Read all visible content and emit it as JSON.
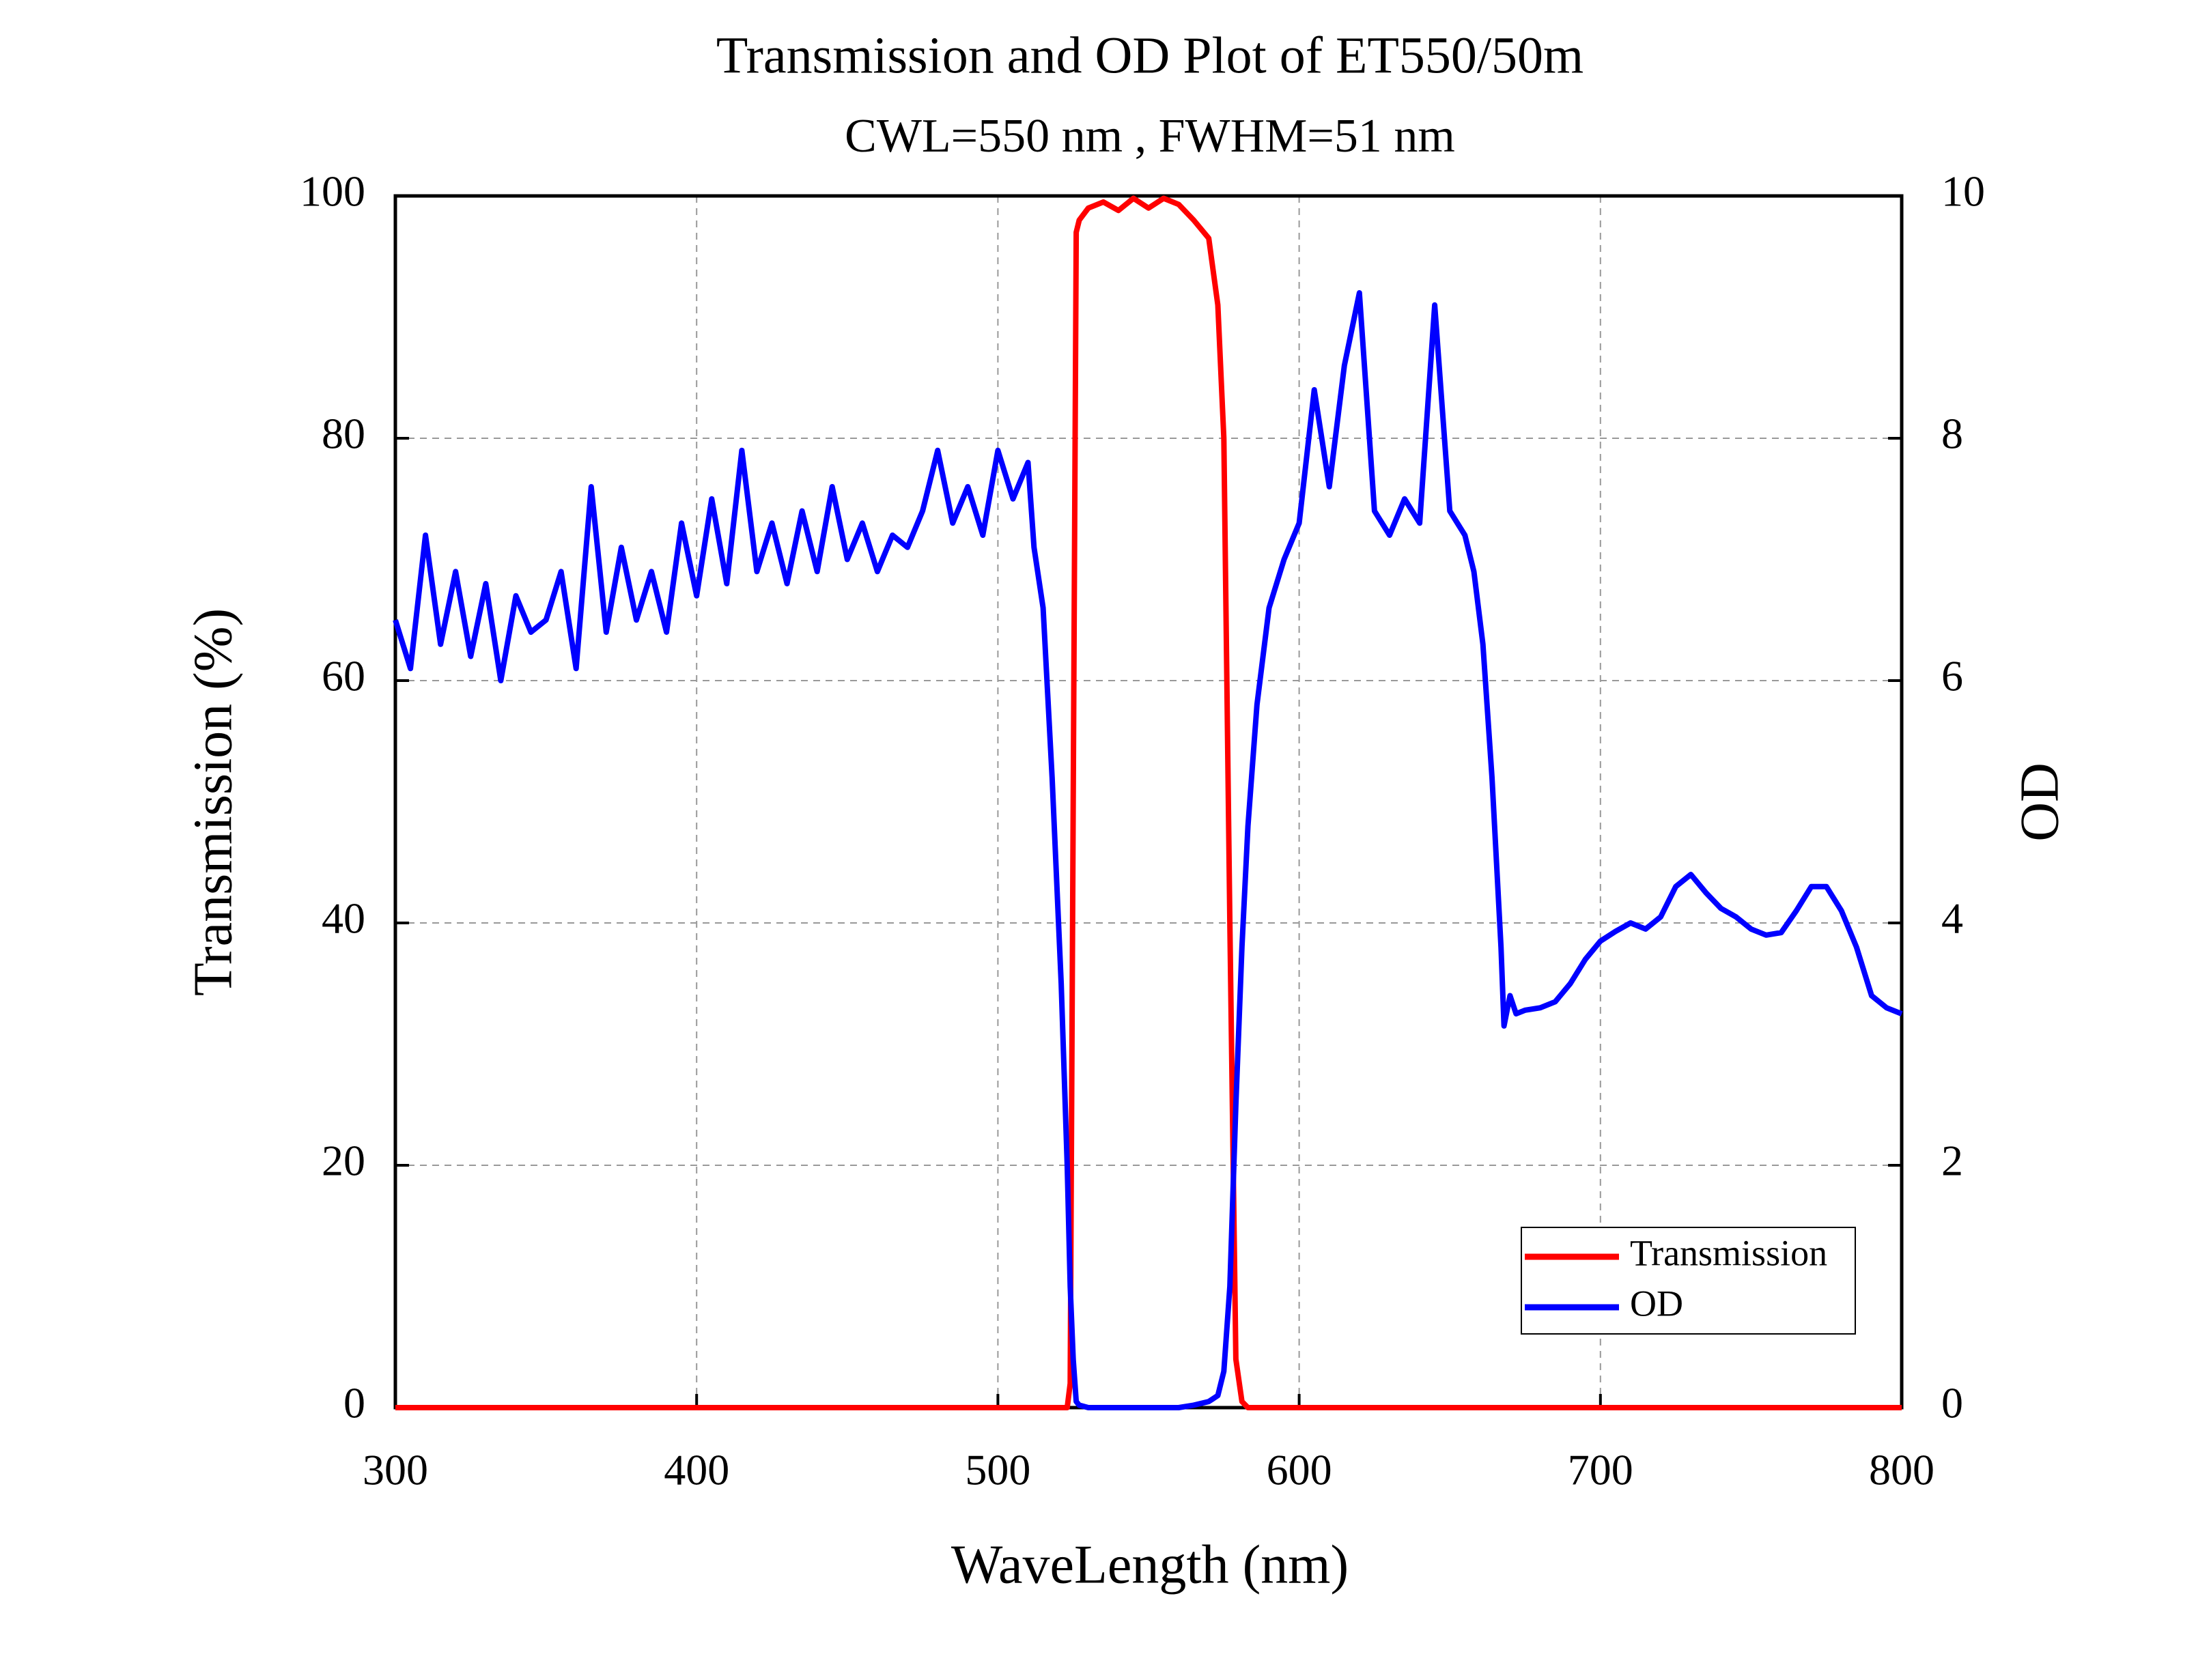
{
  "chart_data": {
    "type": "line",
    "title": "Transmission and OD Plot of ET550/50m",
    "subtitle": "CWL=550 nm , FWHM=51 nm",
    "xlabel": "WaveLength (nm)",
    "ylabel": "Transmission (%)",
    "y2label": "OD",
    "x": [
      300,
      305,
      310,
      315,
      320,
      325,
      330,
      335,
      340,
      345,
      350,
      355,
      360,
      365,
      370,
      375,
      380,
      385,
      390,
      395,
      400,
      405,
      410,
      415,
      420,
      425,
      430,
      435,
      440,
      445,
      450,
      455,
      460,
      465,
      470,
      475,
      480,
      485,
      490,
      495,
      500,
      505,
      510,
      512,
      515,
      518,
      521,
      523,
      524,
      525,
      526,
      527,
      530,
      535,
      540,
      545,
      550,
      555,
      560,
      565,
      570,
      573,
      575,
      577,
      579,
      581,
      583,
      586,
      590,
      595,
      600,
      605,
      610,
      615,
      620,
      625,
      630,
      635,
      640,
      645,
      650,
      655,
      658,
      661,
      664,
      667,
      668,
      670,
      672,
      675,
      680,
      685,
      690,
      695,
      700,
      705,
      710,
      715,
      720,
      725,
      730,
      735,
      740,
      745,
      750,
      755,
      760,
      765,
      770,
      775,
      780,
      785,
      790,
      795,
      800
    ],
    "series": [
      {
        "name": "Transmission",
        "color": "#ff0000",
        "values": [
          0,
          0,
          0,
          0,
          0,
          0,
          0,
          0,
          0,
          0,
          0,
          0,
          0,
          0,
          0,
          0,
          0,
          0,
          0,
          0,
          0,
          0,
          0,
          0,
          0,
          0,
          0,
          0,
          0,
          0,
          0,
          0,
          0,
          0,
          0,
          0,
          0,
          0,
          0,
          0,
          0,
          0,
          0,
          0,
          0,
          0,
          0,
          0,
          2,
          50,
          97,
          98,
          99,
          99.5,
          98.8,
          99.8,
          99,
          99.8,
          99.3,
          98,
          96.5,
          91,
          80,
          40,
          4,
          0.5,
          0,
          0,
          0,
          0,
          0,
          0,
          0,
          0,
          0,
          0,
          0,
          0,
          0,
          0,
          0,
          0,
          0,
          0,
          0,
          0,
          0,
          0,
          0,
          0,
          0,
          0,
          0,
          0,
          0,
          0,
          0,
          0,
          0,
          0,
          0,
          0,
          0,
          0,
          0,
          0,
          0,
          0,
          0,
          0,
          0,
          0,
          0,
          0,
          0
        ]
      },
      {
        "name": "OD",
        "color": "#0000ff",
        "axis": "y2",
        "values": [
          6.5,
          6.1,
          7.2,
          6.3,
          6.9,
          6.2,
          6.8,
          6.0,
          6.7,
          6.4,
          6.5,
          6.9,
          6.1,
          7.6,
          6.4,
          7.1,
          6.5,
          6.9,
          6.4,
          7.3,
          6.7,
          7.5,
          6.8,
          7.9,
          6.9,
          7.3,
          6.8,
          7.4,
          6.9,
          7.6,
          7.0,
          7.3,
          6.9,
          7.2,
          7.1,
          7.4,
          7.9,
          7.3,
          7.6,
          7.2,
          7.9,
          7.5,
          7.8,
          7.1,
          6.6,
          5.2,
          3.5,
          2.0,
          1.0,
          0.4,
          0.05,
          0.02,
          0,
          0,
          0,
          0,
          0,
          0,
          0,
          0.02,
          0.05,
          0.1,
          0.3,
          1.0,
          2.5,
          3.8,
          4.8,
          5.8,
          6.6,
          7.0,
          7.3,
          8.4,
          7.6,
          8.6,
          9.2,
          7.4,
          7.2,
          7.5,
          7.3,
          9.1,
          7.4,
          7.2,
          6.9,
          6.3,
          5.2,
          3.8,
          3.15,
          3.4,
          3.25,
          3.28,
          3.3,
          3.35,
          3.5,
          3.7,
          3.85,
          3.93,
          4.0,
          3.95,
          4.05,
          4.3,
          4.4,
          4.25,
          4.12,
          4.05,
          3.95,
          3.9,
          3.92,
          4.1,
          4.3,
          4.3,
          4.1,
          3.8,
          3.4,
          3.3,
          3.25
        ]
      }
    ],
    "xlim": [
      300,
      800
    ],
    "xticks": [
      300,
      400,
      500,
      600,
      700,
      800
    ],
    "ylim": [
      0,
      100
    ],
    "yticks": [
      0,
      20,
      40,
      60,
      80,
      100
    ],
    "y2lim": [
      0,
      10
    ],
    "y2ticks": [
      0,
      2,
      4,
      6,
      8,
      10
    ],
    "grid": true,
    "legend": "lower right"
  }
}
